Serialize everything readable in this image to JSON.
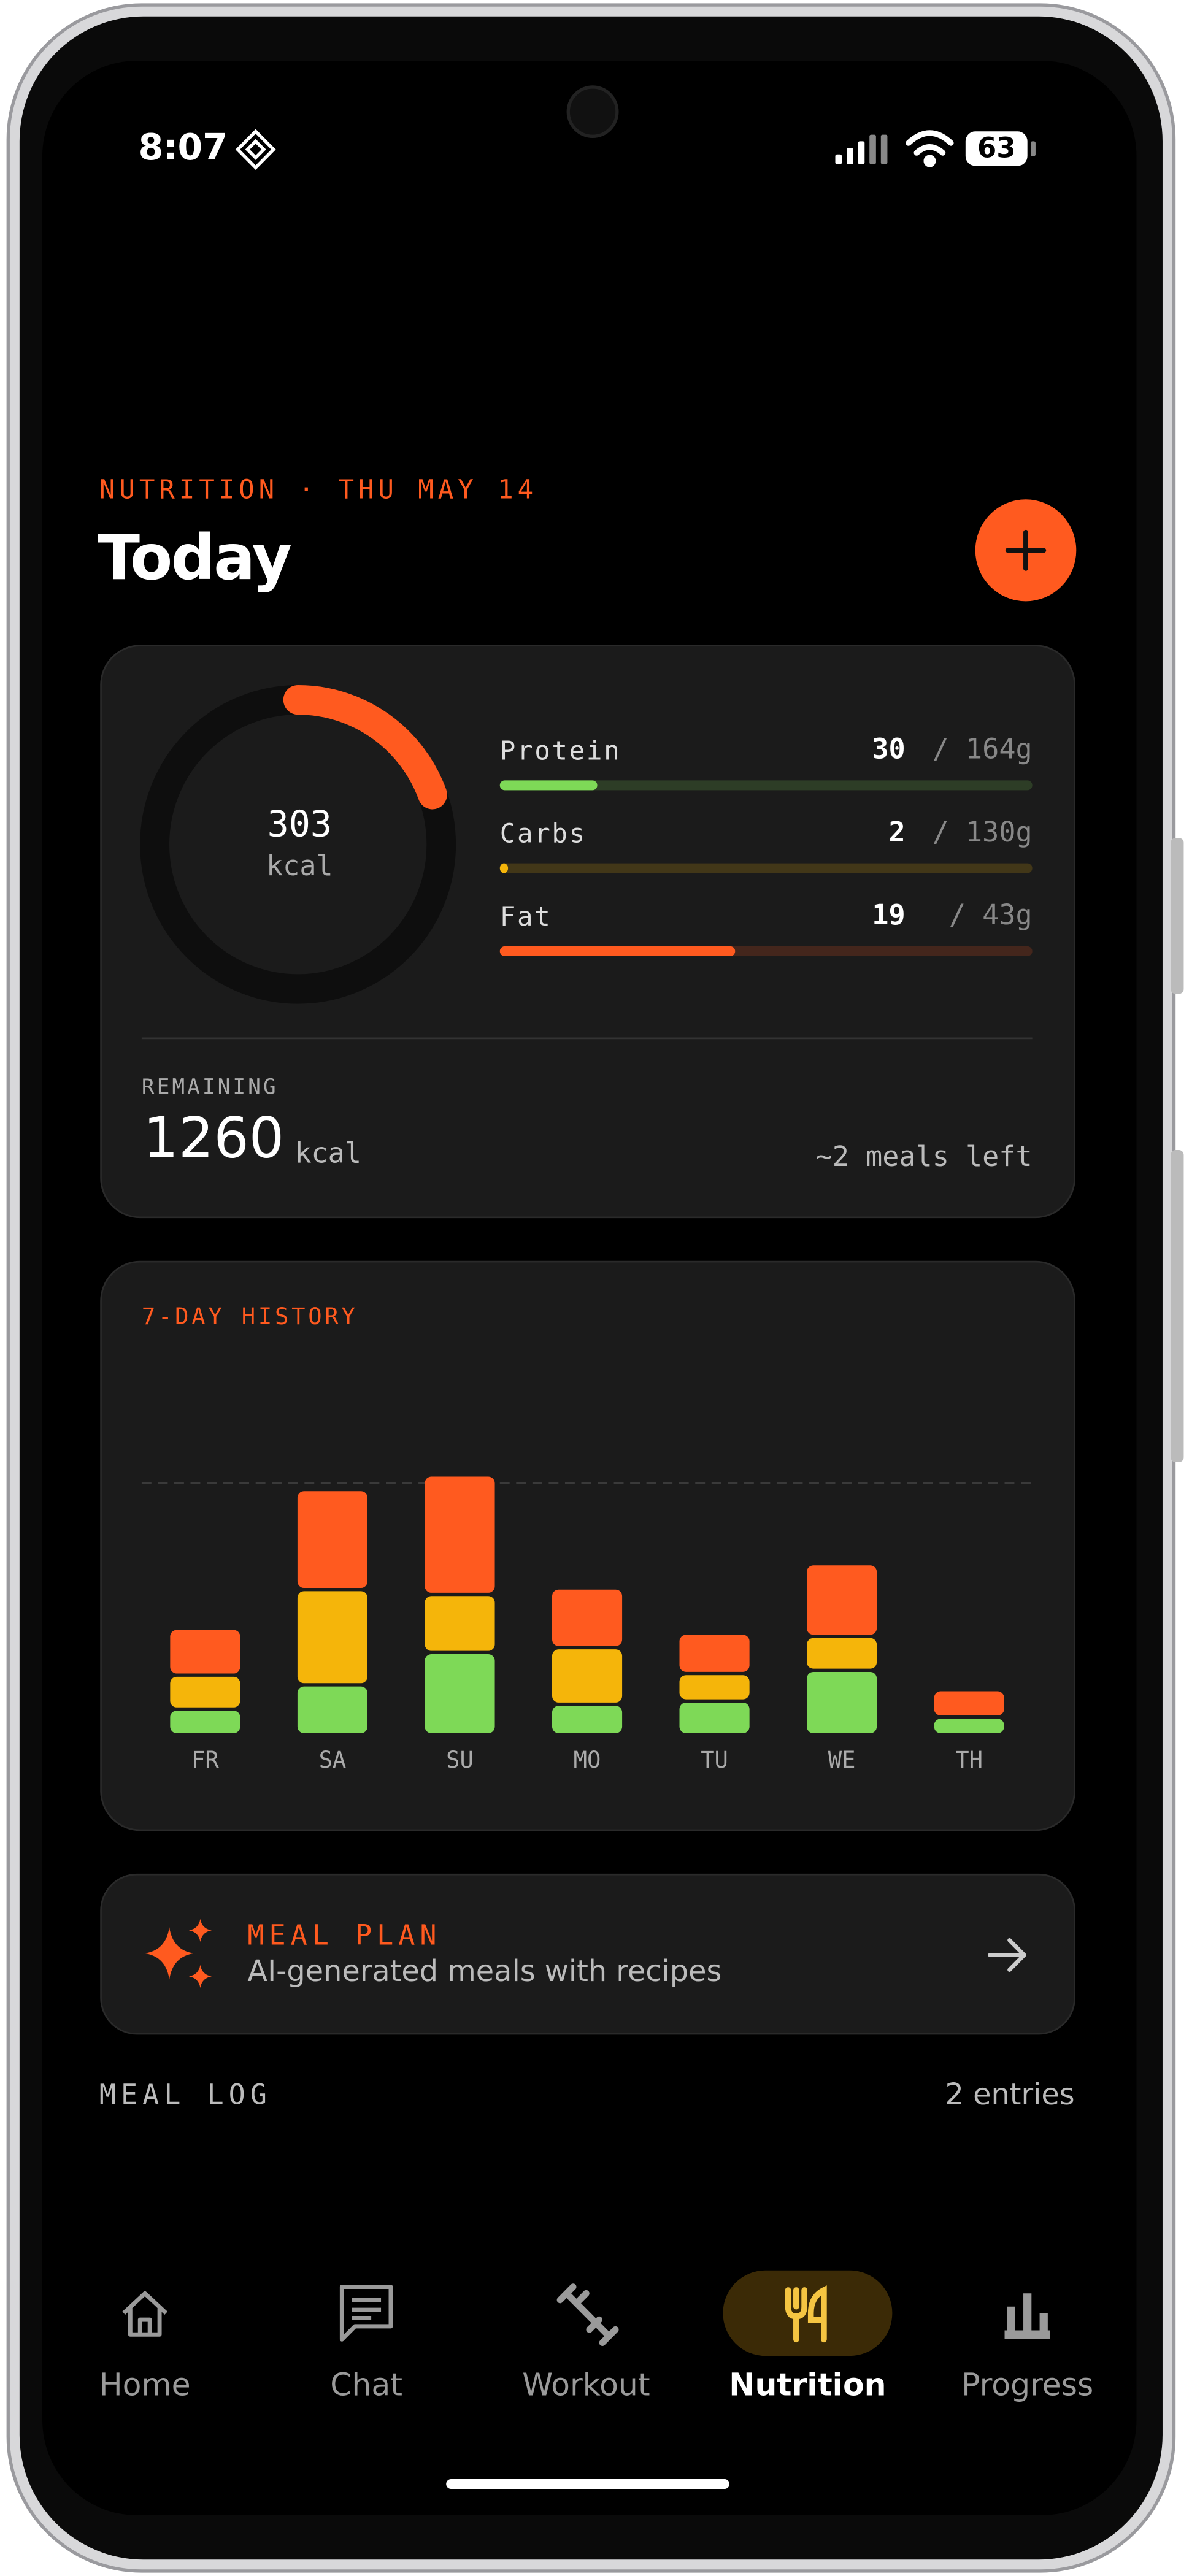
{
  "status_bar": {
    "time": "8:07",
    "battery": 63
  },
  "header": {
    "eyebrow": "NUTRITION · THU MAY 14",
    "title": "Today"
  },
  "summary": {
    "consumed": 303,
    "consumed_unit": "kcal",
    "macros": [
      {
        "label": "Protein",
        "value": 30,
        "goal": 164,
        "goal_label": "/ 164g",
        "color": "#7ed957"
      },
      {
        "label": "Carbs",
        "value": 2,
        "goal": 130,
        "goal_label": "/ 130g",
        "color": "#f5b50a"
      },
      {
        "label": "Fat",
        "value": 19,
        "goal": 43,
        "goal_label": "/ 43g",
        "color": "#ff5a1f"
      }
    ],
    "remaining_label": "REMAINING",
    "remaining": 1260,
    "remaining_unit": "kcal",
    "meals_left": "~2 meals left"
  },
  "chart_data": {
    "type": "bar",
    "stacked": true,
    "title": "7-DAY HISTORY",
    "categories": [
      "FR",
      "SA",
      "SU",
      "MO",
      "TU",
      "WE",
      "TH"
    ],
    "series": [
      {
        "color": "#7ed957",
        "values": [
          160,
          310,
          510,
          190,
          210,
          400,
          110
        ]
      },
      {
        "color": "#f5b50a",
        "values": [
          210,
          590,
          360,
          350,
          170,
          210,
          0
        ]
      },
      {
        "color": "#ff5a1f",
        "values": [
          290,
          620,
          740,
          370,
          250,
          450,
          170
        ]
      }
    ],
    "ylim": [
      0,
      2300
    ],
    "reference_line": 1560
  },
  "meal_plan": {
    "title": "MEAL PLAN",
    "subtitle": "AI-generated meals with recipes"
  },
  "meal_log": {
    "title": "MEAL LOG",
    "count": "2 entries"
  },
  "nav": [
    {
      "label": "Home",
      "active": false
    },
    {
      "label": "Chat",
      "active": false
    },
    {
      "label": "Workout",
      "active": false
    },
    {
      "label": "Nutrition",
      "active": true
    },
    {
      "label": "Progress",
      "active": false
    }
  ]
}
